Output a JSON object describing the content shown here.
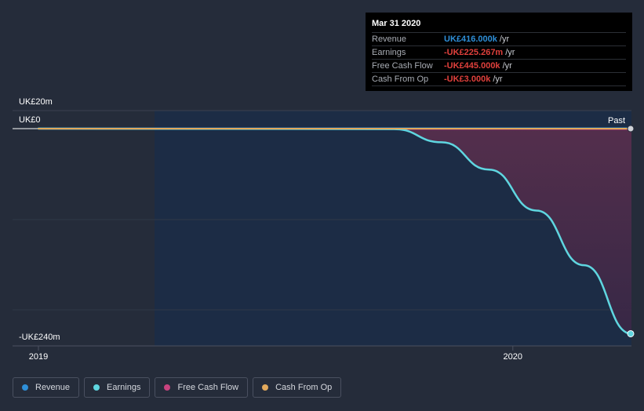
{
  "chart_data": {
    "type": "line",
    "x_ticks": [
      "2019",
      "2020"
    ],
    "y_ticks": [
      "UK£20m",
      "UK£0",
      "-UK£240m"
    ],
    "ylim": [
      -240,
      20
    ],
    "x_range": [
      2019.0,
      2020.25
    ],
    "series": [
      {
        "name": "Revenue",
        "color": "#2e8fd8",
        "points": [
          [
            2019.0,
            0.3
          ],
          [
            2019.75,
            0.4
          ],
          [
            2020.25,
            0.416
          ]
        ]
      },
      {
        "name": "Earnings",
        "color": "#5fd6e0",
        "points": [
          [
            2019.0,
            0.0
          ],
          [
            2019.75,
            -0.5
          ],
          [
            2019.85,
            -15
          ],
          [
            2019.95,
            -45
          ],
          [
            2020.05,
            -90
          ],
          [
            2020.15,
            -150
          ],
          [
            2020.25,
            -225.267
          ]
        ]
      },
      {
        "name": "Free Cash Flow",
        "color": "#c8437f",
        "points": [
          [
            2019.0,
            -0.1
          ],
          [
            2019.75,
            -0.3
          ],
          [
            2020.25,
            -0.445
          ]
        ]
      },
      {
        "name": "Cash From Op",
        "color": "#e2a95c",
        "points": [
          [
            2019.0,
            0.0
          ],
          [
            2019.75,
            0.0
          ],
          [
            2020.25,
            -0.003
          ]
        ]
      }
    ],
    "past_label": "Past"
  },
  "tooltip": {
    "date": "Mar 31 2020",
    "rows": [
      {
        "label": "Revenue",
        "value": "UK£416.000k",
        "unit": "/yr",
        "color": "#2e8fd8"
      },
      {
        "label": "Earnings",
        "value": "-UK£225.267m",
        "unit": "/yr",
        "color": "#e0403c"
      },
      {
        "label": "Free Cash Flow",
        "value": "-UK£445.000k",
        "unit": "/yr",
        "color": "#e0403c"
      },
      {
        "label": "Cash From Op",
        "value": "-UK£3.000k",
        "unit": "/yr",
        "color": "#e0403c"
      }
    ]
  },
  "legend": [
    {
      "label": "Revenue",
      "color": "#2e8fd8"
    },
    {
      "label": "Earnings",
      "color": "#5fd6e0"
    },
    {
      "label": "Free Cash Flow",
      "color": "#c8437f"
    },
    {
      "label": "Cash From Op",
      "color": "#e2a95c"
    }
  ]
}
